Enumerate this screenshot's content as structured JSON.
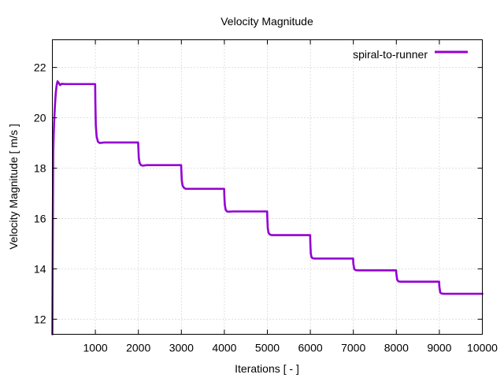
{
  "chart_data": {
    "type": "line",
    "title": "Velocity Magnitude",
    "xlabel": "Iterations [ - ]",
    "ylabel": "Velocity Magnitude [ m/s ]",
    "xlim": [
      0,
      10000
    ],
    "ylim": [
      11.4,
      23.1
    ],
    "grid": true,
    "legend_position": "top-right",
    "x_ticks": [
      1000,
      2000,
      3000,
      4000,
      5000,
      6000,
      7000,
      8000,
      9000,
      10000
    ],
    "y_ticks": [
      12,
      14,
      16,
      18,
      20,
      22
    ],
    "x_tick_labels": [
      "1000",
      "2000",
      "3000",
      "4000",
      "5000",
      "6000",
      "7000",
      "8000",
      "9000",
      "10000"
    ],
    "y_tick_labels": [
      "12",
      "14",
      "16",
      "18",
      "20",
      "22"
    ],
    "series": [
      {
        "name": "spiral-to-runner",
        "color": "#9400d3",
        "x": [
          0,
          10,
          20,
          30,
          40,
          60,
          80,
          100,
          120,
          150,
          180,
          220,
          300,
          400,
          600,
          800,
          995,
          1000,
          1010,
          1030,
          1060,
          1100,
          1200,
          1500,
          1995,
          2000,
          2010,
          2030,
          2060,
          2100,
          2200,
          2500,
          2995,
          3000,
          3010,
          3030,
          3060,
          3100,
          3200,
          3500,
          3995,
          4000,
          4010,
          4030,
          4060,
          4100,
          4200,
          4500,
          4995,
          5000,
          5010,
          5030,
          5060,
          5100,
          5200,
          5500,
          5995,
          6000,
          6010,
          6030,
          6060,
          6100,
          6500,
          6995,
          7000,
          7020,
          7050,
          7100,
          7500,
          7995,
          8000,
          8020,
          8050,
          8100,
          8500,
          8995,
          9000,
          9020,
          9050,
          9100,
          9500,
          10000
        ],
        "y": [
          11.4,
          15.5,
          18.6,
          19.3,
          19.8,
          20.5,
          21.0,
          21.3,
          21.45,
          21.38,
          21.3,
          21.35,
          21.34,
          21.34,
          21.34,
          21.34,
          21.34,
          20.6,
          19.7,
          19.25,
          19.05,
          19.0,
          19.02,
          19.02,
          19.02,
          18.8,
          18.4,
          18.2,
          18.12,
          18.1,
          18.12,
          18.12,
          18.12,
          17.9,
          17.5,
          17.3,
          17.22,
          17.18,
          17.18,
          17.18,
          17.18,
          16.9,
          16.55,
          16.35,
          16.28,
          16.27,
          16.28,
          16.28,
          16.28,
          16.0,
          15.6,
          15.42,
          15.36,
          15.34,
          15.34,
          15.34,
          15.34,
          15.0,
          14.6,
          14.45,
          14.42,
          14.41,
          14.41,
          14.41,
          14.2,
          14.0,
          13.95,
          13.94,
          13.94,
          13.94,
          13.8,
          13.56,
          13.5,
          13.49,
          13.49,
          13.49,
          13.3,
          13.06,
          13.02,
          13.01,
          13.01,
          13.01
        ]
      }
    ]
  }
}
